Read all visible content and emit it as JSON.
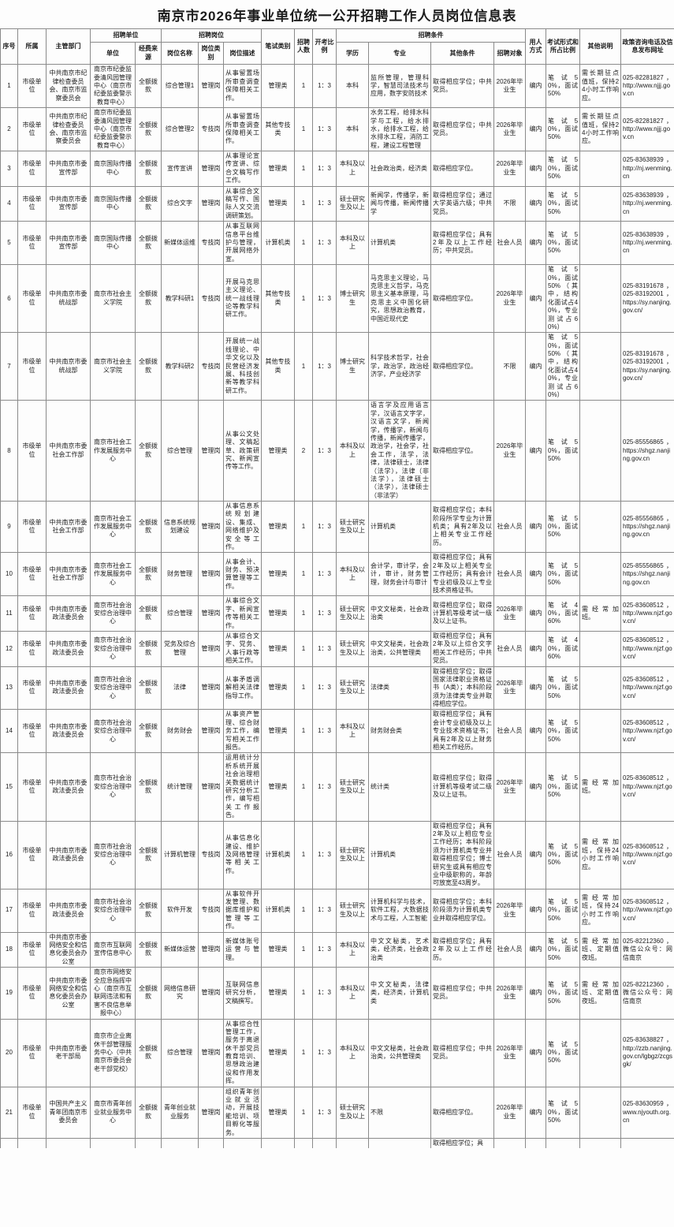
{
  "title": "南京市2026年事业单位统一公开招聘工作人员岗位信息表",
  "headers": {
    "xh": "序号",
    "ss": "所属",
    "zgbm": "主管部门",
    "zpdw": "招聘单位",
    "dw": "单位",
    "jfly": "经费来源",
    "zpgw": "招聘岗位",
    "gwmc": "岗位名称",
    "gwlb": "岗位类别",
    "gwms": "岗位描述",
    "bslb": "笔试类别",
    "zprs": "招聘人数",
    "kkbl": "开考比例",
    "zptj": "招聘条件",
    "xl": "学历",
    "zy": "专业",
    "qttj": "其他条件",
    "zpdx": "招聘对象",
    "yrfs": "用人方式",
    "ksxs": "考试形式和所占比例",
    "qtsm": "其他说明",
    "zcdh": "政策咨询电话及信息发布网址"
  },
  "rows": [
    [
      "1",
      "市级单位",
      "中共南京市纪律检查委员会、南京市监察委员会",
      "南京市纪委监委清风园管理中心（南京市纪委监委警示教育中心）",
      "全额拨款",
      "综合管理1",
      "管理岗",
      "从事留置场所审查调查保障相关工作。",
      "管理类",
      "1",
      "1：3",
      "本科",
      "监所管理，管理科学，智慧司法技术与应用，数字安防技术",
      "取得相应学位；中共党员。",
      "2026年毕业生",
      "编内",
      "笔试50%，面试50%",
      "需长期驻点值班，保持24小时工作响应。",
      "025-82281827，http://www.njjj.gov.cn"
    ],
    [
      "2",
      "市级单位",
      "中共南京市纪律检查委员会、南京市监察委员会",
      "南京市纪委监委清风园管理中心（南京市纪委监委警示教育中心）",
      "全额拨款",
      "综合管理2",
      "专技岗",
      "从事留置场所审查调查保障相关工作。",
      "其他专技类",
      "1",
      "1：3",
      "本科",
      "水务工程，给排水科学与工程，给水排水，给排水工程，给水排水工程，消防工程，建设工程管理",
      "取得相应学位；中共党员。",
      "2026年毕业生",
      "编内",
      "笔试50%，面试50%",
      "需长期驻点值班，保持24小时工作响应。",
      "025-82281827，http://www.njjj.gov.cn"
    ],
    [
      "3",
      "市级单位",
      "中共南京市委宣传部",
      "南京国际传播中心",
      "全额拨款",
      "宣传宣讲",
      "管理岗",
      "从事理论宣传宣讲、综合文稿写作工作。",
      "管理类",
      "1",
      "1：3",
      "本科及以上",
      "社会政治类，经济类",
      "取得相应学位。",
      "2026年毕业生",
      "编内",
      "笔试50%，面试50%",
      "",
      "025-83638939，http://nj.wenming.cn"
    ],
    [
      "4",
      "市级单位",
      "中共南京市委宣传部",
      "南京国际传播中心",
      "全额拨款",
      "综合文字",
      "管理岗",
      "从事综合文稿写作、国际人文交流调研策划。",
      "管理类",
      "1",
      "1：3",
      "硕士研究生及以上",
      "新闻学，传播学，新闻与传播，新闻传播学",
      "取得相应学位；通过大学英语六级；中共党员。",
      "不限",
      "编内",
      "笔试50%，面试50%",
      "",
      "025-83638939，http://nj.wenming.cn"
    ],
    [
      "5",
      "市级单位",
      "中共南京市委宣传部",
      "南京国际传播中心",
      "全额拨款",
      "新媒体运维",
      "专技岗",
      "从事互联网信息平台维护与管理，开展网络外宣。",
      "计算机类",
      "1",
      "1：3",
      "本科及以上",
      "计算机类",
      "取得相应学位；具有2年及以上工作经历；中共党员。",
      "社会人员",
      "编内",
      "笔试50%，面试50%",
      "",
      "025-83638939，http://nj.wenming.cn"
    ],
    [
      "6",
      "市级单位",
      "中共南京市委统战部",
      "南京市社会主义学院",
      "全额拨款",
      "教学科研1",
      "专技岗",
      "开展马克思主义理论、统一战线理论等教学科研工作。",
      "其他专技类",
      "1",
      "1：3",
      "博士研究生",
      "马克思主义理论，马克思主义哲学，马克思主义基本原理，马克思主义中国化研究，思想政治教育，中国近现代史",
      "取得相应学位。",
      "2026年毕业生",
      "编内",
      "笔试50%，面试50%（其中，结构化面试占40%，专业测试占60%）",
      "",
      "025-83191678，025-83192001，https://sy.nanjing.gov.cn/"
    ],
    [
      "7",
      "市级单位",
      "中共南京市委统战部",
      "南京市社会主义学院",
      "全额拨款",
      "教学科研2",
      "专技岗",
      "开展统一战线理论、中华文化以及民营经济发展、科技创新等教学科研工作。",
      "其他专技类",
      "1",
      "1：3",
      "博士研究生",
      "科学技术哲学，社会学，政治学，政治经济学，产业经济学",
      "取得相应学位。",
      "不限",
      "编内",
      "笔试50%，面试50%（其中，结构化面试占40%，专业测试占60%）",
      "",
      "025-83191678，025-83192001，https://sy.nanjing.gov.cn/"
    ],
    [
      "8",
      "市级单位",
      "中共南京市委社会工作部",
      "南京市社会工作发展服务中心",
      "全额拨款",
      "综合管理",
      "管理岗",
      "从事公文处理、文稿起草、政策研究、新闻宣传等工作。",
      "管理类",
      "2",
      "1：3",
      "本科及以上",
      "语言学及应用语言学，汉语言文字学，汉语言文学，新闻学，传播学，新闻与传播，新闻传播学，政治学，社会学，社会工作，法学，法律，法律硕士，法律（法学），法律（非法学），法律硕士（法学），法律硕士（非法学）",
      "取得相应学位。",
      "2026年毕业生",
      "编内",
      "笔试50%，面试50%",
      "",
      "025-85556865，https://shgz.nanjing.gov.cn"
    ],
    [
      "9",
      "市级单位",
      "中共南京市委社会工作部",
      "南京市社会工作发展服务中心",
      "全额拨款",
      "信息系统规划建设",
      "管理岗",
      "从事信息系统规划建设、集成、网络维护及安全等工作。",
      "管理类",
      "1",
      "1：3",
      "硕士研究生及以上",
      "计算机类",
      "取得相应学位；本科阶段所学专业为计算机类；具有2年及以上相关专业工作经历。",
      "社会人员",
      "编内",
      "笔试50%，面试50%",
      "",
      "025-85556865，https://shgz.nanjing.gov.cn"
    ],
    [
      "10",
      "市级单位",
      "中共南京市委社会工作部",
      "南京市社会工作发展服务中心",
      "全额拨款",
      "财务管理",
      "管理岗",
      "从事会计、财务、预决算管理等工作。",
      "管理类",
      "1",
      "1：3",
      "本科及以上",
      "会计学，审计学，会计，审计，财务管理，财务会计与审计",
      "取得相应学位；具有2年及以上相关专业工作经历；具有会计专业初级及以上专业技术资格证书。",
      "社会人员",
      "编内",
      "笔试50%，面试50%",
      "",
      "025-85556865，https://shgz.nanjing.gov.cn"
    ],
    [
      "11",
      "市级单位",
      "中共南京市委政法委员会",
      "南京市社会治安综合治理中心",
      "全额拨款",
      "综合管理",
      "管理岗",
      "从事综合文字、新闻宣传等相关工作。",
      "管理类",
      "1",
      "1：3",
      "硕士研究生及以上",
      "中文文秘类，社会政治类",
      "取得相应学位；取得计算机等级考试一级及以上证书。",
      "2026年毕业生",
      "编内",
      "笔试40%，面试60%",
      "需经常加班。",
      "025-83608512，http://www.njzf.gov.cn/"
    ],
    [
      "12",
      "市级单位",
      "中共南京市委政法委员会",
      "南京市社会治安综合治理中心",
      "全额拨款",
      "党务及综合管理",
      "管理岗",
      "从事综合文字、党务、人事行政等相关工作。",
      "管理类",
      "1",
      "1：3",
      "硕士研究生及以上",
      "中文文秘类，社会政治类，公共管理类",
      "取得相应学位；具有2年及以上综合文字相关工作经历；中共党员。",
      "社会人员",
      "编内",
      "笔试40%，面试60%",
      "",
      "025-83608512，http://www.njzf.gov.cn/"
    ],
    [
      "13",
      "市级单位",
      "中共南京市委政法委员会",
      "南京市社会治安综合治理中心",
      "全额拨款",
      "法律",
      "管理岗",
      "从事矛盾调解相关法律指导工作。",
      "管理类",
      "1",
      "1：3",
      "硕士研究生及以上",
      "法律类",
      "取得相应学位；取得国家法律职业资格证书（A类）；本科阶段须为法律类专业并取得相应学位。",
      "2026年毕业生",
      "编内",
      "笔试50%，面试50%",
      "",
      "025-83608512，http://www.njzf.gov.cn/"
    ],
    [
      "14",
      "市级单位",
      "中共南京市委政法委员会",
      "南京市社会治安综合治理中心",
      "全额拨款",
      "财务财会",
      "管理岗",
      "从事资产管理、综合财务工作，编写相关工作报告。",
      "管理类",
      "1",
      "1：3",
      "本科及以上",
      "财务财会类",
      "取得相应学位；具有会计专业初级及以上专业技术资格证书；具有2年及以上财务相关工作经历。",
      "社会人员",
      "编内",
      "笔试50%，面试50%",
      "",
      "025-83608512，http://www.njzf.gov.cn/"
    ],
    [
      "15",
      "市级单位",
      "中共南京市委政法委员会",
      "南京市社会治安综合治理中心",
      "全额拨款",
      "统计管理",
      "管理岗",
      "运用统计分析系统开展社会治理相关数据统计研究分析工作，编写相关工作报告。",
      "管理类",
      "1",
      "1：3",
      "硕士研究生及以上",
      "统计类",
      "取得相应学位；取得计算机等级考试二级及以上证书。",
      "2026年毕业生",
      "编内",
      "笔试50%，面试50%",
      "需经常加班。",
      "025-83608512，http://www.njzf.gov.cn/"
    ],
    [
      "16",
      "市级单位",
      "中共南京市委政法委员会",
      "南京市社会治安综合治理中心",
      "全额拨款",
      "计算机管理",
      "专技岗",
      "从事信息化建设、维护及网络管理等相关工作。",
      "计算机类",
      "1",
      "1：3",
      "硕士研究生及以上",
      "计算机类",
      "取得相应学位；具有2年及以上相应专业工作经历；本科阶段须为计算机类专业并取得相应学位；博士研究生或具有相应专业中级职称的，年龄可放宽至43周岁。",
      "社会人员",
      "编内",
      "笔试50%，面试50%",
      "需经常加班，保持24小时工作响应。",
      "025-83608512，http://www.njzf.gov.cn/"
    ],
    [
      "17",
      "市级单位",
      "中共南京市委政法委员会",
      "南京市社会治安综合治理中心",
      "全额拨款",
      "软件开发",
      "专技岗",
      "从事软件开发管理、数据库维护和管理等工作。",
      "计算机类",
      "1",
      "1：3",
      "硕士研究生及以上",
      "计算机科学与技术，软件工程，大数据技术与工程，人工智能",
      "取得相应学位；本科阶段须为计算机类专业并取得相应学位。",
      "2026年毕业生",
      "编内",
      "笔试50%，面试50%",
      "需经常加班，保持24小时工作响应。",
      "025-83608512，http://www.njzf.gov.cn/"
    ],
    [
      "18",
      "市级单位",
      "中共南京市委网络安全和信息化委员会办公室",
      "南京市互联网宣传信息中心",
      "全额拨款",
      "新媒体运营",
      "管理岗",
      "新媒体账号运营与管理。",
      "管理类",
      "1",
      "1：3",
      "本科及以上",
      "中文文秘类，艺术类，经济类，社会政治类",
      "取得相应学位；具有2年及以上工作经历。",
      "社会人员",
      "编内",
      "笔试50%，面试50%",
      "需经常加班、定期值夜班。",
      "025-82212360，微信公众号：网信南京"
    ],
    [
      "19",
      "市级单位",
      "中共南京市委网络安全和信息化委员会办公室",
      "南京市网络安全应急指挥中心（南京市互联网违法和有害不良信息举报中心）",
      "全额拨款",
      "网络信息研究",
      "管理岗",
      "互联网信息研究分析，文稿撰写。",
      "管理类",
      "1",
      "1：3",
      "本科及以上",
      "中文文秘类，法律类，经济类，计算机类",
      "取得相应学位；中共党员。",
      "2026年毕业生",
      "编内",
      "笔试50%，面试50%",
      "需经常加班、定期值夜班。",
      "025-82212360，微信公众号：网信南京"
    ],
    [
      "20",
      "市级单位",
      "中共南京市委老干部局",
      "南京市企业离休干部管理服务中心（中共南京市委员会老干部党校）",
      "全额拨款",
      "综合管理",
      "管理岗",
      "从事综合性管理工作，服务于离退休干部党员教育培训、思想政治建设和作用发挥。",
      "管理类",
      "1",
      "1：3",
      "本科及以上",
      "中文文秘类，社会政治类，公共管理类",
      "取得相应学位；中共党员。",
      "2026年毕业生",
      "编内",
      "笔试50%，面试50%",
      "",
      "025-83638827，http://zzb.nanjing.gov.cn/lgbgz/zcgsgk/"
    ],
    [
      "21",
      "市级单位",
      "中国共产主义青年团南京市委员会",
      "南京市青年创业就业服务中心",
      "全额拨款",
      "青年创业就业服务",
      "管理岗",
      "组织青年创业就业活动，开展技能培训、项目孵化等服务。",
      "管理类",
      "1",
      "1：3",
      "硕士研究生及以上",
      "不限",
      "取得相应学位。",
      "2026年毕业生",
      "编内",
      "笔试50%，面试50%",
      "",
      "025-83630959，www.njyouth.org.cn"
    ]
  ],
  "partial_row": [
    "",
    "",
    "",
    "",
    "",
    "",
    "",
    "",
    "",
    "",
    "",
    "",
    "",
    "取得相应学位；具",
    "",
    "",
    "",
    "",
    ""
  ]
}
